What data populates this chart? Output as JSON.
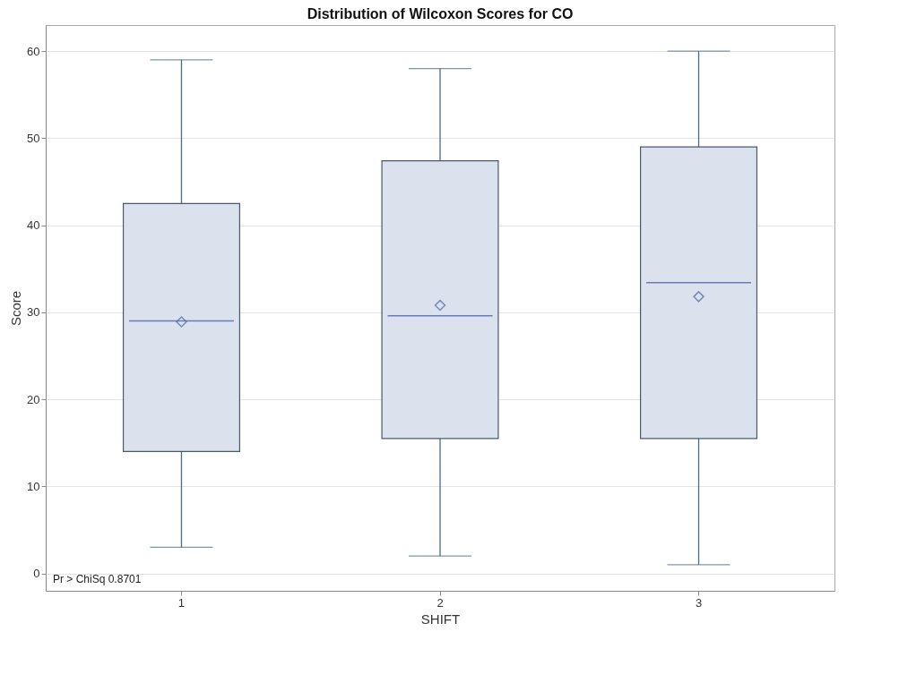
{
  "chart_data": {
    "type": "box",
    "title": "Distribution of Wilcoxon Scores for CO",
    "xlabel": "SHIFT",
    "ylabel": "Score",
    "categories": [
      "1",
      "2",
      "3"
    ],
    "boxes": [
      {
        "low": 3,
        "q1": 14,
        "median": 29,
        "q3": 42.5,
        "high": 59,
        "mean": 28.9
      },
      {
        "low": 2,
        "q1": 15.5,
        "median": 29.6,
        "q3": 47.4,
        "high": 58,
        "mean": 30.8
      },
      {
        "low": 1,
        "q1": 15.5,
        "median": 33.4,
        "q3": 49,
        "high": 60,
        "mean": 31.8
      }
    ],
    "color": "#dbe2ee",
    "ylim": [
      -2,
      63
    ],
    "yticks": [
      0,
      10,
      20,
      30,
      40,
      50,
      60
    ],
    "grid": "y",
    "marker": "diamond",
    "annotations": [
      "Pr > ChiSq  0.8701"
    ]
  }
}
